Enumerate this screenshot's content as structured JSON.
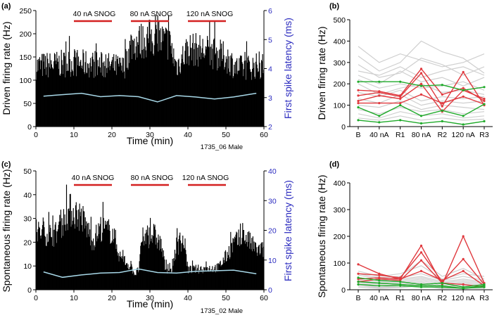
{
  "chart_data": [
    {
      "id": "a",
      "type": "bar",
      "panel_label": "(a)",
      "xlabel": "Time (min)",
      "ylabel": "Driven firing rate (Hz)",
      "y2label": "First spike latency (ms)",
      "xlim": [
        0,
        60
      ],
      "ylim": [
        0,
        250
      ],
      "y2lim": [
        2,
        6
      ],
      "xticks": [
        "0",
        "10",
        "20",
        "30",
        "40",
        "50",
        "60"
      ],
      "yticks": [
        "0",
        "50",
        "100",
        "150",
        "200",
        "250"
      ],
      "y2ticks": [
        "2",
        "3",
        "4",
        "5",
        "6"
      ],
      "caption": "1735_06 Male",
      "snog_labels": [
        "40 nA SNOG",
        "80 nA SNOG",
        "120 nA SNOG"
      ],
      "snog_periods": [
        [
          10,
          20
        ],
        [
          25,
          35
        ],
        [
          40,
          50
        ]
      ],
      "histogram_profile": [
        [
          0,
          140
        ],
        [
          10,
          148
        ],
        [
          20,
          140
        ],
        [
          23,
          135
        ],
        [
          25,
          190
        ],
        [
          30,
          205
        ],
        [
          35,
          195
        ],
        [
          37,
          140
        ],
        [
          40,
          180
        ],
        [
          45,
          175
        ],
        [
          50,
          160
        ],
        [
          53,
          135
        ],
        [
          58,
          140
        ]
      ],
      "latency_series": [
        [
          2,
          3.05
        ],
        [
          5,
          3.08
        ],
        [
          12,
          3.15
        ],
        [
          17,
          3.03
        ],
        [
          22,
          3.07
        ],
        [
          27,
          3.03
        ],
        [
          32,
          2.85
        ],
        [
          37,
          3.07
        ],
        [
          42,
          3.02
        ],
        [
          47,
          2.95
        ],
        [
          52,
          3.02
        ],
        [
          58,
          3.15
        ]
      ]
    },
    {
      "id": "b",
      "type": "line",
      "panel_label": "(b)",
      "ylabel": "Driven firing rate (Hz)",
      "categories": [
        "B",
        "40 nA",
        "R1",
        "80 nA",
        "R2",
        "120 nA",
        "R3"
      ],
      "ylim": [
        0,
        500
      ],
      "yticks": [
        "0",
        "100",
        "200",
        "300",
        "400",
        "500"
      ],
      "series_red": [
        [
          170,
          165,
          145,
          270,
          150,
          180,
          120
        ],
        [
          145,
          160,
          140,
          250,
          95,
          255,
          100
        ],
        [
          120,
          145,
          130,
          200,
          70,
          170,
          130
        ],
        [
          110,
          110,
          110,
          150,
          110,
          140,
          105
        ]
      ],
      "series_green": [
        [
          210,
          210,
          210,
          190,
          195,
          170,
          185
        ],
        [
          90,
          50,
          100,
          50,
          75,
          50,
          105
        ],
        [
          30,
          20,
          30,
          15,
          25,
          10,
          25
        ]
      ],
      "series_gray": [
        [
          375,
          300,
          340,
          310,
          280,
          300,
          340
        ],
        [
          330,
          260,
          300,
          400,
          350,
          320,
          250
        ],
        [
          290,
          230,
          250,
          320,
          290,
          240,
          280
        ],
        [
          260,
          240,
          280,
          230,
          260,
          280,
          240
        ],
        [
          240,
          200,
          260,
          210,
          230,
          190,
          230
        ],
        [
          220,
          180,
          200,
          180,
          190,
          210,
          170
        ],
        [
          200,
          150,
          180,
          200,
          160,
          170,
          150
        ],
        [
          160,
          140,
          170,
          120,
          140,
          130,
          140
        ],
        [
          130,
          110,
          150,
          100,
          120,
          110,
          120
        ],
        [
          100,
          90,
          120,
          80,
          100,
          90,
          80
        ],
        [
          80,
          60,
          90,
          70,
          80,
          60,
          70
        ],
        [
          60,
          40,
          70,
          50,
          60,
          40,
          50
        ],
        [
          40,
          30,
          50,
          30,
          40,
          30,
          35
        ]
      ]
    },
    {
      "id": "c",
      "type": "bar",
      "panel_label": "(c)",
      "xlabel": "Time (min)",
      "ylabel": "Spontaneous firing rate (Hz)",
      "y2label": "First spike latency (ms)",
      "xlim": [
        0,
        60
      ],
      "ylim": [
        0,
        50
      ],
      "y2lim": [
        0,
        40
      ],
      "xticks": [
        "0",
        "10",
        "20",
        "30",
        "40",
        "50",
        "60"
      ],
      "yticks": [
        "0",
        "10",
        "20",
        "30",
        "40",
        "50"
      ],
      "y2ticks": [
        "0",
        "10",
        "20",
        "30",
        "40"
      ],
      "caption": "1735_02 Male",
      "snog_labels": [
        "40 nA SNOG",
        "80 nA SNOG",
        "120 nA SNOG"
      ],
      "snog_periods": [
        [
          10,
          20
        ],
        [
          25,
          35
        ],
        [
          40,
          50
        ]
      ],
      "histogram_profile": [
        [
          0,
          26
        ],
        [
          5,
          25
        ],
        [
          9,
          36
        ],
        [
          12,
          33
        ],
        [
          15,
          22
        ],
        [
          17,
          28
        ],
        [
          20,
          26
        ],
        [
          21,
          22
        ],
        [
          22,
          15
        ],
        [
          24,
          12
        ],
        [
          25.5,
          9
        ],
        [
          26,
          7
        ],
        [
          27,
          9
        ],
        [
          28,
          23
        ],
        [
          31,
          25
        ],
        [
          33,
          20
        ],
        [
          34,
          10
        ],
        [
          35.5,
          8
        ],
        [
          37,
          20
        ],
        [
          39,
          22
        ],
        [
          40,
          9
        ],
        [
          48,
          10
        ],
        [
          50,
          15
        ],
        [
          52,
          21
        ],
        [
          55,
          24
        ],
        [
          58,
          18
        ]
      ],
      "latency_series": [
        [
          2,
          6
        ],
        [
          7,
          4.2
        ],
        [
          12,
          5
        ],
        [
          17,
          5.6
        ],
        [
          22,
          5.8
        ],
        [
          27,
          7
        ],
        [
          32,
          5.8
        ],
        [
          37,
          5.6
        ],
        [
          42,
          6.2
        ],
        [
          47,
          6.4
        ],
        [
          52,
          6.6
        ],
        [
          58,
          5.4
        ]
      ]
    },
    {
      "id": "d",
      "type": "line",
      "panel_label": "(d)",
      "ylabel": "Spontaneous firing rate (Hz)",
      "categories": [
        "B",
        "40 nA",
        "R1",
        "80 nA",
        "R2",
        "120 nA",
        "R3"
      ],
      "ylim": [
        0,
        400
      ],
      "yticks": [
        "0",
        "100",
        "200",
        "300",
        "400"
      ],
      "series_red": [
        [
          95,
          60,
          40,
          165,
          20,
          200,
          25
        ],
        [
          60,
          55,
          45,
          140,
          30,
          115,
          20
        ],
        [
          40,
          45,
          40,
          70,
          35,
          70,
          15
        ],
        [
          30,
          40,
          35,
          110,
          25,
          20,
          10
        ]
      ],
      "series_green": [
        [
          45,
          35,
          30,
          20,
          25,
          10,
          20
        ],
        [
          30,
          25,
          20,
          15,
          15,
          5,
          15
        ],
        [
          20,
          15,
          15,
          10,
          10,
          5,
          10
        ]
      ],
      "series_gray": [
        [
          70,
          50,
          60,
          90,
          40,
          60,
          50
        ],
        [
          60,
          45,
          50,
          110,
          50,
          80,
          40
        ],
        [
          55,
          40,
          45,
          60,
          35,
          50,
          35
        ],
        [
          45,
          35,
          40,
          50,
          30,
          40,
          30
        ],
        [
          40,
          30,
          35,
          45,
          25,
          35,
          25
        ],
        [
          35,
          25,
          30,
          40,
          20,
          30,
          20
        ],
        [
          30,
          20,
          25,
          35,
          15,
          25,
          15
        ],
        [
          25,
          15,
          20,
          30,
          10,
          20,
          12
        ],
        [
          20,
          10,
          15,
          25,
          8,
          15,
          10
        ],
        [
          15,
          8,
          10,
          20,
          5,
          10,
          8
        ],
        [
          10,
          5,
          8,
          15,
          4,
          8,
          5
        ]
      ]
    }
  ]
}
